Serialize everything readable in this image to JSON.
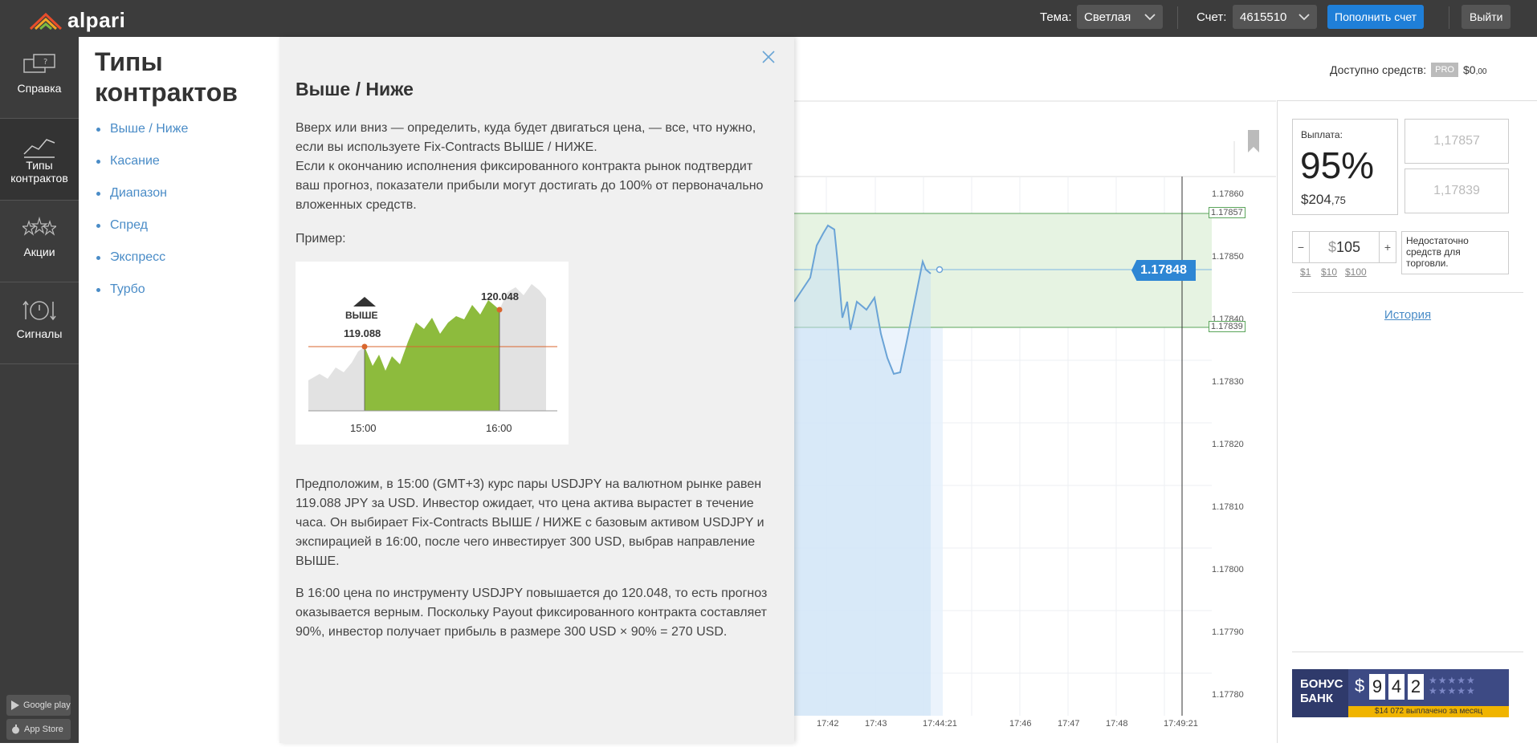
{
  "topbar": {
    "logo_text": "alpari",
    "theme_label": "Тема:",
    "theme_value": "Светлая",
    "account_label": "Счет:",
    "account_value": "4615510",
    "deposit_button": "Пополнить счет",
    "exit_button": "Выйти"
  },
  "rail": {
    "items": [
      {
        "label": "Справка"
      },
      {
        "label_line1": "Типы",
        "label_line2": "контрактов"
      },
      {
        "label": "Акции"
      },
      {
        "label": "Сигналы"
      }
    ],
    "google_play": "Google play",
    "app_store": "App Store"
  },
  "types": {
    "title_line1": "Типы",
    "title_line2": "контрактов",
    "items": [
      "Выше / Ниже",
      "Касание",
      "Диапазон",
      "Спред",
      "Экспресс",
      "Турбо"
    ]
  },
  "info": {
    "title": "Выше / Ниже",
    "para1": "Вверх или вниз — определить, куда будет двигаться цена, — все, что нужно, если вы используете Fix-Contracts ВЫШЕ / НИЖЕ.",
    "para2": "Если к окончанию исполнения фиксированного контракта рынок подтвердит ваш прогноз, показатели прибыли могут достигать до 100% от первоначально вложенных средств.",
    "example_label": "Пример:",
    "example_chart": {
      "direction_label": "ВЫШЕ",
      "start_price": "119.088",
      "end_price": "120.048",
      "start_time": "15:00",
      "end_time": "16:00"
    },
    "para3": "Предположим, в 15:00 (GMT+3) курс пары USDJPY на валютном рынке равен 119.088 JPY за USD. Инвестор ожидает, что цена актива вырастет в течение часа. Он выбирает Fix-Contracts ВЫШЕ / НИЖЕ с базовым активом USDJPY и экспирацией в 16:00, после чего инвестирует 300 USD, выбрав направление ВЫШЕ.",
    "para4": "В 16:00 цена по инструменту USDJPY повышается до 120.048, то есть прогноз оказывается верным. Поскольку Payout фиксированного контракта составляет 90%, инвестор получает прибыль в размере 300 USD × 90% = 270 USD."
  },
  "chart": {
    "y_ticks": [
      "1.17860",
      "1.17850",
      "1.17840",
      "1.17830",
      "1.17820",
      "1.17810",
      "1.17800",
      "1.17790",
      "1.17780"
    ],
    "x_ticks": [
      "17:42",
      "17:43",
      "17:44:21",
      "17:46",
      "17:47",
      "17:48",
      "17:49:21"
    ],
    "upper_level": "1.17857",
    "lower_level": "1.17839",
    "current_price": "1.17848"
  },
  "account": {
    "available_label": "Доступно средств:",
    "pro_badge": "PRO",
    "balance_main": "$0",
    "balance_cents": ",00"
  },
  "trade": {
    "payout_label": "Выплата:",
    "payout_pct": "95%",
    "payout_amount_main": "$204",
    "payout_amount_cents": ",75",
    "price_high": "1,17857",
    "price_low": "1,17839",
    "minus": "−",
    "plus": "+",
    "currency": "$",
    "stake": "105",
    "quick1": "$1",
    "quick2": "$10",
    "quick3": "$100",
    "warning": "Недостаточно средств для торговли.",
    "history_link": "История"
  },
  "bonus": {
    "title_line1": "БОНУС",
    "title_line2": "БАНК",
    "currency": "$",
    "digits": [
      "9",
      "4",
      "2"
    ],
    "caption": "$14 072 выплачено за месяц"
  },
  "colors": {
    "topbar": "#3c3c3c",
    "accent_blue": "#1f7fd8",
    "link": "#4a8cc7",
    "price_tag": "#2e86d4",
    "range_fill": "#e6f3e2",
    "bonus_bg": "#2f3a6b"
  }
}
